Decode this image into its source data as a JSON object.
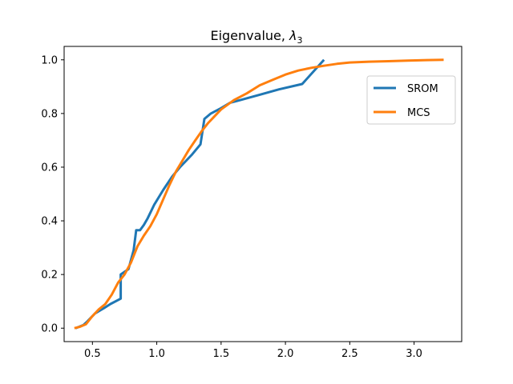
{
  "chart_data": {
    "type": "line",
    "title_text": "Eigenvalue, ",
    "title_symbol": "λ",
    "title_subscript": "3",
    "xlabel": "",
    "ylabel": "",
    "xlim": [
      0.28,
      3.37
    ],
    "ylim": [
      -0.05,
      1.05
    ],
    "x_ticks": [
      0.5,
      1.0,
      1.5,
      2.0,
      2.5,
      3.0
    ],
    "x_tick_labels": [
      "0.5",
      "1.0",
      "1.5",
      "2.0",
      "2.5",
      "3.0"
    ],
    "y_ticks": [
      0.0,
      0.2,
      0.4,
      0.6,
      0.8,
      1.0
    ],
    "y_tick_labels": [
      "0.0",
      "0.2",
      "0.4",
      "0.6",
      "0.8",
      "1.0"
    ],
    "grid": false,
    "legend_position": "upper right",
    "series": [
      {
        "name": "SROM",
        "color": "#1f77b4",
        "x": [
          0.37,
          0.43,
          0.46,
          0.52,
          0.59,
          0.64,
          0.72,
          0.72,
          0.78,
          0.82,
          0.84,
          0.87,
          0.9,
          0.93,
          0.98,
          1.05,
          1.12,
          1.18,
          1.27,
          1.34,
          1.37,
          1.42,
          1.5,
          1.57,
          1.65,
          1.8,
          1.95,
          2.13,
          2.3
        ],
        "y": [
          0.0,
          0.012,
          0.025,
          0.055,
          0.075,
          0.09,
          0.11,
          0.2,
          0.22,
          0.29,
          0.365,
          0.365,
          0.385,
          0.41,
          0.46,
          0.515,
          0.565,
          0.6,
          0.645,
          0.685,
          0.78,
          0.8,
          0.82,
          0.84,
          0.85,
          0.87,
          0.89,
          0.91,
          1.0
        ]
      },
      {
        "name": "MCS",
        "color": "#ff7f0e",
        "x": [
          0.36,
          0.4,
          0.45,
          0.5,
          0.55,
          0.6,
          0.65,
          0.7,
          0.75,
          0.8,
          0.85,
          0.9,
          0.95,
          1.0,
          1.05,
          1.1,
          1.15,
          1.2,
          1.25,
          1.3,
          1.35,
          1.4,
          1.45,
          1.5,
          1.6,
          1.7,
          1.8,
          1.9,
          2.0,
          2.1,
          2.2,
          2.3,
          2.4,
          2.5,
          2.65,
          2.8,
          2.95,
          3.1,
          3.23
        ],
        "y": [
          0.0,
          0.005,
          0.015,
          0.045,
          0.07,
          0.09,
          0.125,
          0.17,
          0.2,
          0.245,
          0.305,
          0.345,
          0.38,
          0.425,
          0.48,
          0.535,
          0.585,
          0.625,
          0.665,
          0.7,
          0.735,
          0.765,
          0.79,
          0.815,
          0.85,
          0.875,
          0.905,
          0.925,
          0.945,
          0.96,
          0.97,
          0.978,
          0.985,
          0.99,
          0.993,
          0.995,
          0.997,
          0.999,
          1.0
        ]
      }
    ]
  }
}
